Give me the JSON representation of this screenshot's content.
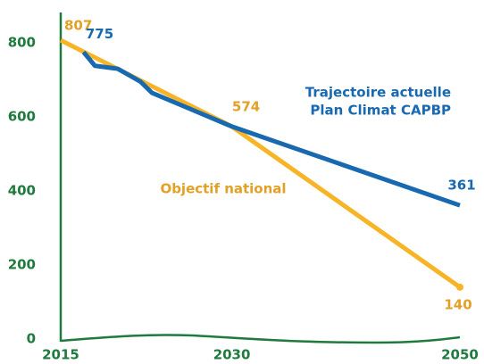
{
  "chart_data": {
    "type": "line",
    "xlim": [
      2015,
      2050
    ],
    "xticks": [
      2015,
      2030,
      2050
    ],
    "ylim": [
      0,
      800
    ],
    "yticks": [
      0,
      200,
      400,
      600,
      800
    ],
    "axis_color": "#1f7a3e",
    "series": [
      {
        "name": "Objectif national",
        "color": "#f6b426",
        "label_color": "#e2a126",
        "x": [
          2015,
          2030,
          2050
        ],
        "values": [
          807,
          574,
          140
        ]
      },
      {
        "label_lines": [
          "Trajectoire actuelle",
          "Plan Climat CAPBP"
        ],
        "color": "#1869b0",
        "label_color": "#1869b0",
        "x": [
          2017,
          2018,
          2020,
          2022,
          2023,
          2030,
          2050
        ],
        "values": [
          775,
          738,
          730,
          695,
          665,
          574,
          361
        ]
      }
    ]
  }
}
